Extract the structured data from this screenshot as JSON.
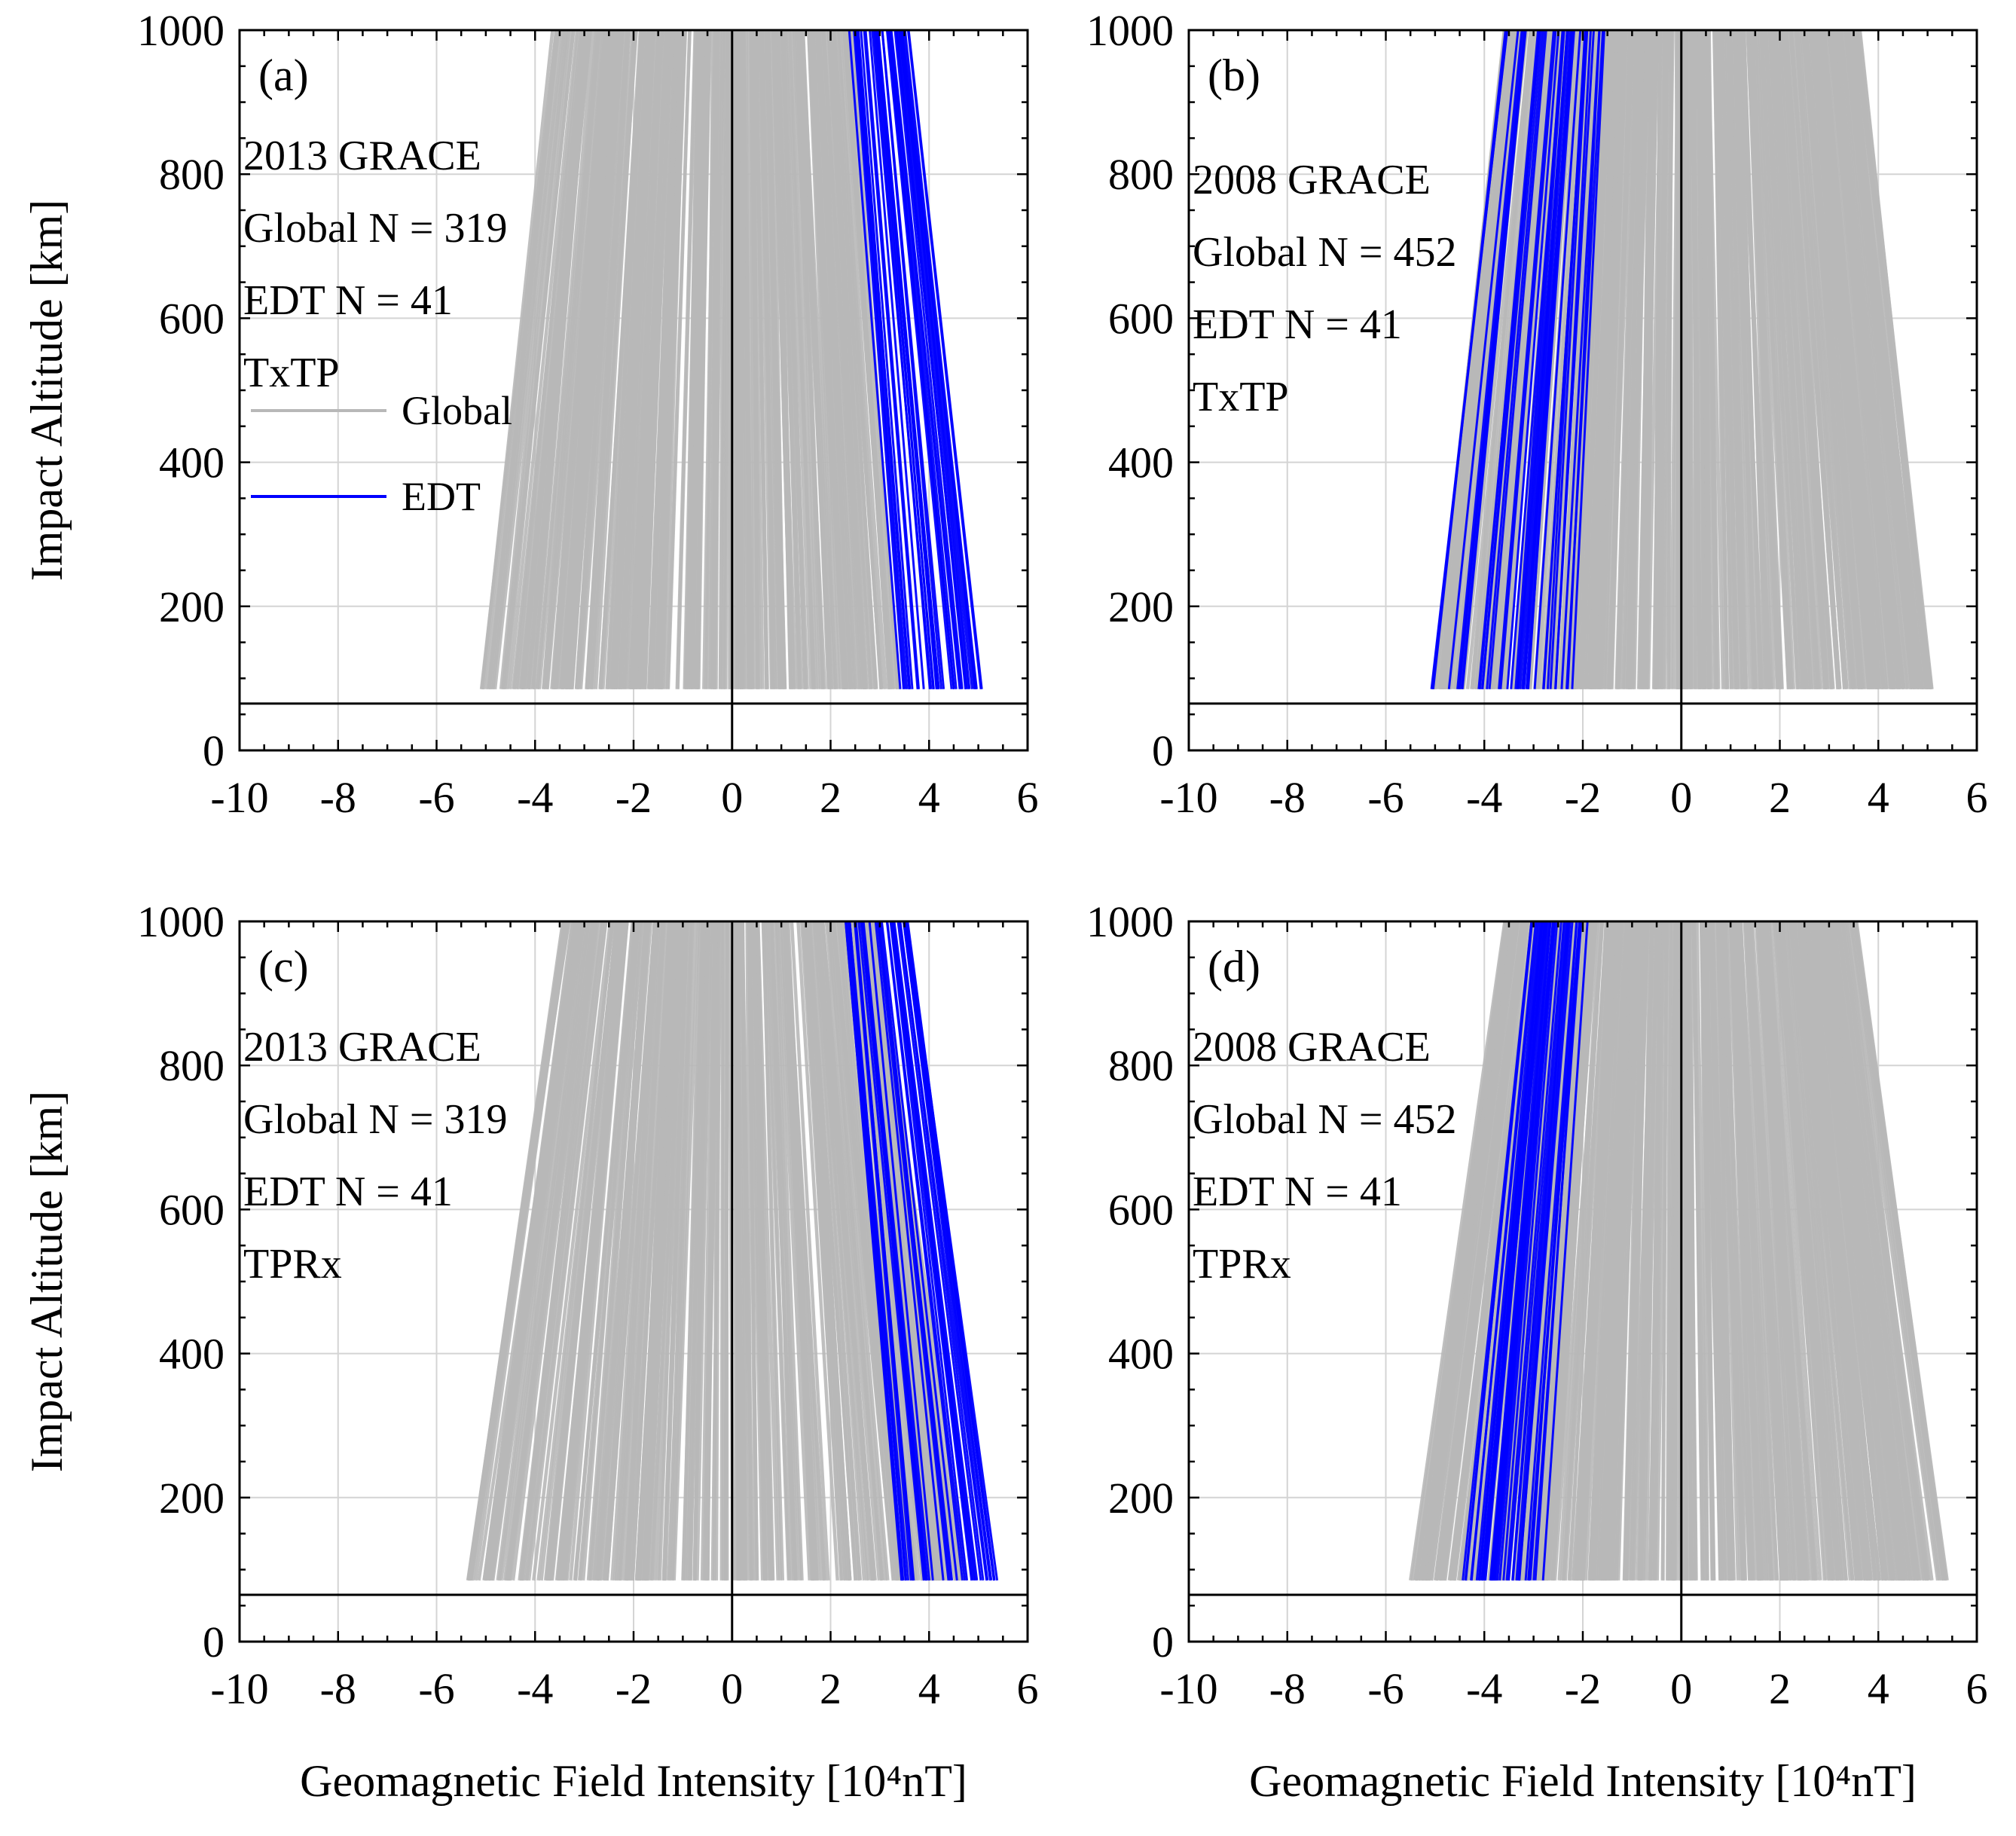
{
  "figure": {
    "line_colors": {
      "global": "#b8b8b8",
      "edt": "#0000ff",
      "axis": "#000000",
      "grid": "#d4d4d4"
    }
  },
  "chart_data": [
    {
      "type": "line",
      "panel_label": "(a)",
      "annotations": [
        "2013 GRACE",
        "Global N = 319",
        "EDT N = 41",
        "TxTP"
      ],
      "legend": {
        "placement": "upper-left",
        "entries": [
          {
            "name": "Global",
            "color": "#b8b8b8"
          },
          {
            "name": "EDT",
            "color": "#0000ff"
          }
        ]
      },
      "xlabel": "Geomagnetic Field Intensity [10⁴nT]",
      "ylabel": "Impact Altitude [km]",
      "xlim": [
        -10,
        6
      ],
      "ylim": [
        0,
        1000
      ],
      "xticks": [
        "-10",
        "-8",
        "-6",
        "-4",
        "-2",
        "0",
        "2",
        "4",
        "6"
      ],
      "yticks": [
        "0",
        "200",
        "400",
        "600",
        "800",
        "1000"
      ],
      "grid": true,
      "reference_lines": {
        "horizontal_altitude_km": 65,
        "vertical_intensity": 0
      },
      "profile_altitude_range_km": [
        85,
        1000
      ],
      "series": [
        {
          "name": "Global",
          "count": 319,
          "value_at_85km_range": [
            -5.1,
            3.4
          ],
          "value_at_1000km_range": [
            -3.6,
            2.4
          ]
        },
        {
          "name": "EDT",
          "count": 41,
          "value_at_85km_range": [
            3.4,
            5.1
          ],
          "value_at_1000km_range": [
            2.4,
            3.6
          ]
        }
      ]
    },
    {
      "type": "line",
      "panel_label": "(b)",
      "annotations": [
        "2008 GRACE",
        "Global N = 452",
        "EDT N = 41",
        "TxTP"
      ],
      "xlabel": "Geomagnetic Field Intensity [10⁴nT]",
      "ylabel": "",
      "xlim": [
        -10,
        6
      ],
      "ylim": [
        0,
        1000
      ],
      "xticks": [
        "-10",
        "-8",
        "-6",
        "-4",
        "-2",
        "0",
        "2",
        "4",
        "6"
      ],
      "yticks": [
        "0",
        "200",
        "400",
        "600",
        "800",
        "1000"
      ],
      "grid": true,
      "reference_lines": {
        "horizontal_altitude_km": 65,
        "vertical_intensity": 0
      },
      "profile_altitude_range_km": [
        85,
        1000
      ],
      "series": [
        {
          "name": "Global",
          "count": 452,
          "value_at_85km_range": [
            -5.1,
            5.1
          ],
          "value_at_1000km_range": [
            -3.6,
            3.6
          ]
        },
        {
          "name": "EDT",
          "count": 41,
          "value_at_85km_range": [
            -5.1,
            -2.0
          ],
          "value_at_1000km_range": [
            -3.6,
            -1.4
          ]
        }
      ]
    },
    {
      "type": "line",
      "panel_label": "(c)",
      "annotations": [
        "2013 GRACE",
        "Global N = 319",
        "EDT N = 41",
        "TPRx"
      ],
      "xlabel": "Geomagnetic Field Intensity [10⁴nT]",
      "ylabel": "Impact Altitude [km]",
      "xlim": [
        -10,
        6
      ],
      "ylim": [
        0,
        1000
      ],
      "xticks": [
        "-10",
        "-8",
        "-6",
        "-4",
        "-2",
        "0",
        "2",
        "4",
        "6"
      ],
      "yticks": [
        "0",
        "200",
        "400",
        "600",
        "800",
        "1000"
      ],
      "grid": true,
      "reference_lines": {
        "horizontal_altitude_km": 65,
        "vertical_intensity": 0
      },
      "profile_altitude_range_km": [
        85,
        1000
      ],
      "series": [
        {
          "name": "Global",
          "count": 319,
          "value_at_85km_range": [
            -5.4,
            4.8
          ],
          "value_at_1000km_range": [
            -3.4,
            3.0
          ]
        },
        {
          "name": "EDT",
          "count": 41,
          "value_at_85km_range": [
            3.4,
            5.4
          ],
          "value_at_1000km_range": [
            2.3,
            3.6
          ]
        }
      ]
    },
    {
      "type": "line",
      "panel_label": "(d)",
      "annotations": [
        "2008 GRACE",
        "Global N = 452",
        "EDT N = 41",
        "TPRx"
      ],
      "xlabel": "Geomagnetic Field Intensity [10⁴nT]",
      "ylabel": "",
      "xlim": [
        -10,
        6
      ],
      "ylim": [
        0,
        1000
      ],
      "xticks": [
        "-10",
        "-8",
        "-6",
        "-4",
        "-2",
        "0",
        "2",
        "4",
        "6"
      ],
      "yticks": [
        "0",
        "200",
        "400",
        "600",
        "800",
        "1000"
      ],
      "grid": true,
      "reference_lines": {
        "horizontal_altitude_km": 65,
        "vertical_intensity": 0
      },
      "profile_altitude_range_km": [
        85,
        1000
      ],
      "series": [
        {
          "name": "Global",
          "count": 452,
          "value_at_85km_range": [
            -5.5,
            5.5
          ],
          "value_at_1000km_range": [
            -3.6,
            3.6
          ]
        },
        {
          "name": "EDT",
          "count": 41,
          "value_at_85km_range": [
            -4.5,
            -2.8
          ],
          "value_at_1000km_range": [
            -3.1,
            -1.9
          ]
        }
      ]
    }
  ]
}
